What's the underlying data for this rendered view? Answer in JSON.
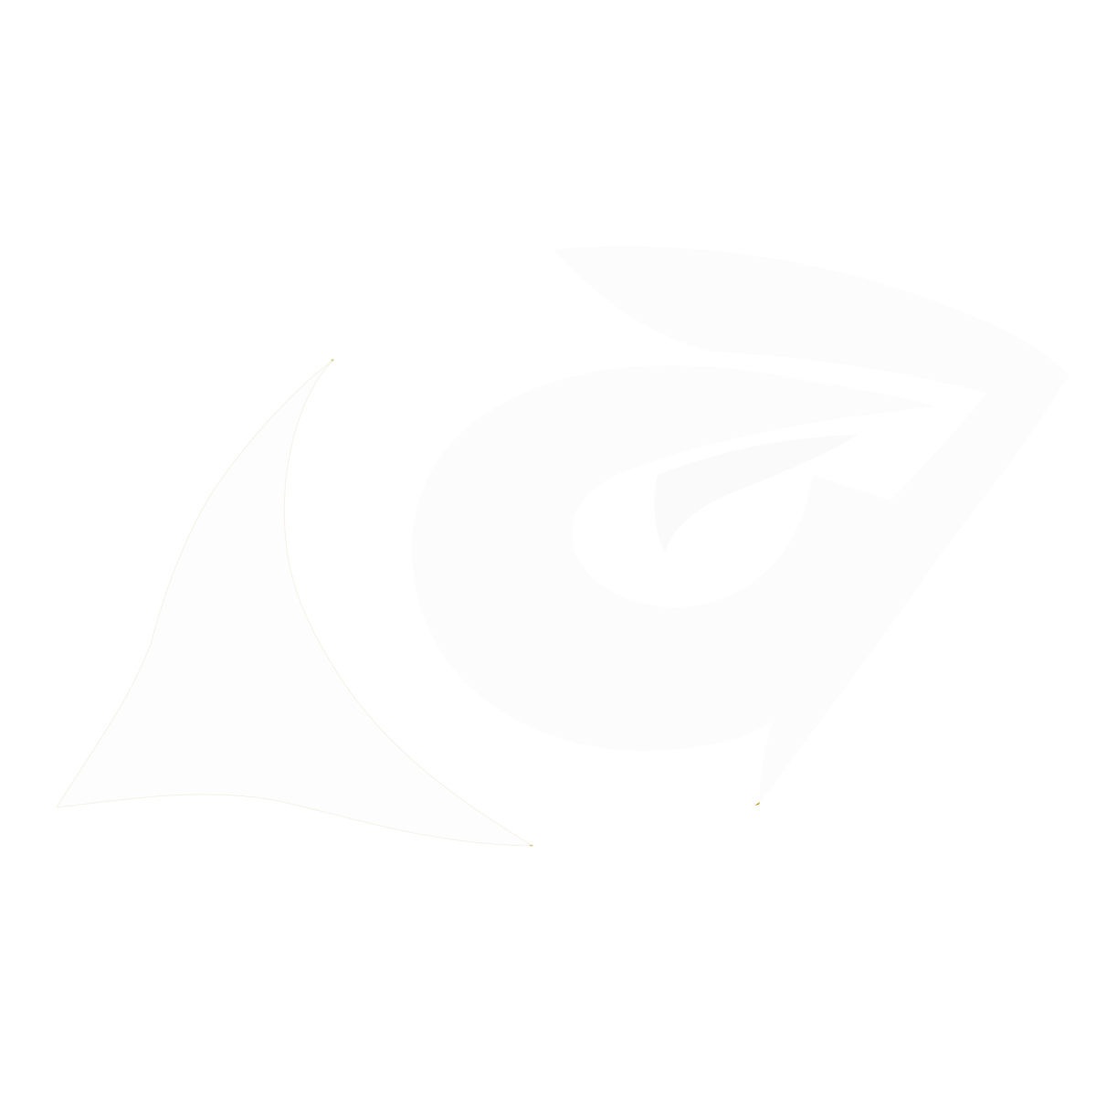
{
  "scene": {
    "background_color": "#ffffff",
    "shapes": [
      {
        "name": "left-curved-shape",
        "fill": "#fdfdfd",
        "stroke": "#f3f1e6",
        "stroke_opacity": 0.9
      },
      {
        "name": "right-swirl-shape",
        "fill": "#fcfcfc",
        "fill_opacity": 0.9
      },
      {
        "name": "right-swirl-inner-shape",
        "fill": "#f8f8f8",
        "fill_opacity": 0.75
      }
    ],
    "marks": [
      {
        "name": "small-mark-top",
        "color": "#d6c57a"
      },
      {
        "name": "small-mark-bottom-right",
        "color": "#c0a32e"
      },
      {
        "name": "small-mark-bottom-left",
        "color": "#d7c684"
      }
    ]
  }
}
